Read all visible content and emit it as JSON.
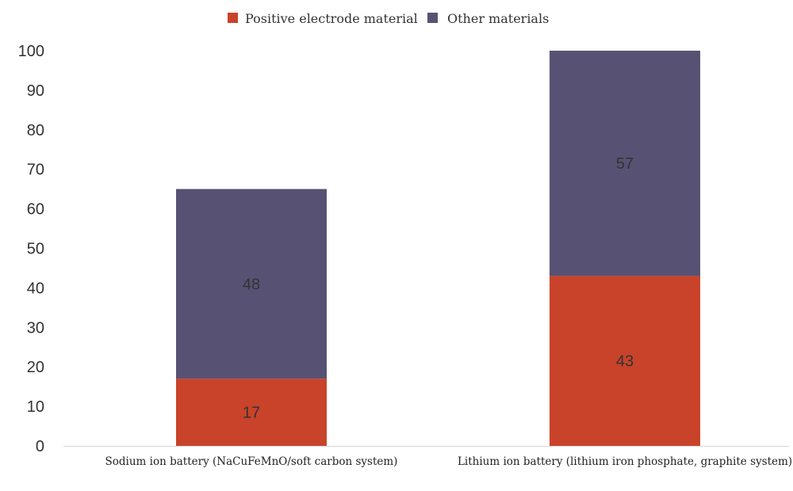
{
  "chart_data": {
    "type": "bar",
    "stacked": true,
    "categories": [
      "Sodium ion battery (NaCuFeMnO/soft carbon system)",
      "Lithium ion battery (lithium iron phosphate, graphite system)"
    ],
    "series": [
      {
        "name": "Positive electrode material",
        "values": [
          17,
          43
        ],
        "color": "#c8432a"
      },
      {
        "name": "Other materials",
        "values": [
          48,
          57
        ],
        "color": "#575274"
      }
    ],
    "ylim": [
      0,
      100
    ],
    "yticks": [
      0,
      10,
      20,
      30,
      40,
      50,
      60,
      70,
      80,
      90,
      100
    ],
    "data_labels": true,
    "legend_position": "top-center",
    "grid": false,
    "title": "",
    "xlabel": "",
    "ylabel": ""
  }
}
